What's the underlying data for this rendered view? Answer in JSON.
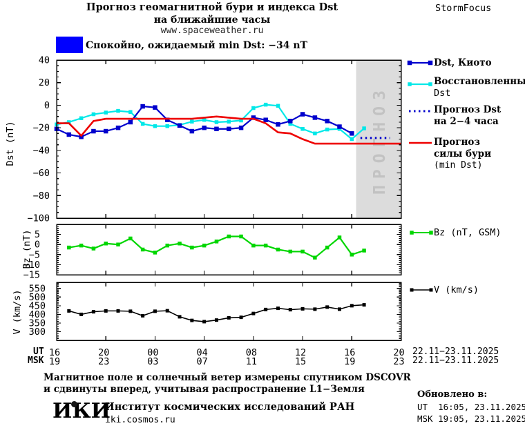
{
  "header": {
    "title_line1": "Прогноз геомагнитной бури и индекса Dst",
    "title_line2": "на ближайшие часы",
    "website": "www.spaceweather.ru",
    "brand": "StormFocus"
  },
  "status": {
    "label": "Спокойно, ожидаемый min Dst: −34 nT",
    "swatch_color": "#0000ff"
  },
  "forecast_band": {
    "label": "ПРОГНОЗ",
    "fill": "#dcdcdc",
    "label_color": "#c2c2c2",
    "from_hour": 40.35,
    "to_hour": 44
  },
  "legend": {
    "kyoto": "Dst, Киото",
    "restored_line1": "Восстановленный",
    "restored_line2": "Dst",
    "forecast_line1": "Прогноз Dst",
    "forecast_line2": "на 2−4 часа",
    "storm_line1": "Прогноз",
    "storm_line2": "силы бури",
    "storm_line3": "(min Dst)",
    "bz": "Bz (nT, GSM)",
    "v": "V (km/s)"
  },
  "axis": {
    "ut_label": "UT",
    "msk_label": "MSK",
    "ut_ticks": [
      "16",
      "20",
      "00",
      "04",
      "08",
      "12",
      "16",
      "20"
    ],
    "msk_ticks": [
      "19",
      "23",
      "03",
      "07",
      "11",
      "15",
      "19",
      "23"
    ],
    "tick_hours": [
      16,
      20,
      24,
      28,
      32,
      36,
      40,
      44
    ],
    "date_range_ut": "22.11−23.11.2025",
    "date_range_msk": "22.11−23.11.2025"
  },
  "footer": {
    "note_line1": "Магнитное поле и солнечный ветер измерены спутником DSCOVR",
    "note_line2": "и сдвинуты вперед, учитывая распространение L1−Земля",
    "logo": "ИКИ",
    "institute": "Институт космических исследований РАН",
    "site": "iki.cosmos.ru",
    "updated_title": "Обновлено в:",
    "updated_ut": "UT  16:05, 23.11.2025",
    "updated_msk": "MSK 19:05, 23.11.2025"
  },
  "chart_data": {
    "x_start_hour": 16,
    "x_end_hour": 44,
    "xticks_hours": [
      16,
      20,
      24,
      28,
      32,
      36,
      40,
      44
    ],
    "panels": [
      {
        "id": "dst",
        "type": "line",
        "ylabel": "Dst (nT)",
        "ylim": [
          -100,
          40
        ],
        "yticks": [
          40,
          20,
          0,
          -20,
          -40,
          -60,
          -80,
          -100
        ],
        "ytick_minor_step": 5,
        "series": [
          {
            "id": "restored",
            "name": "Восстановленный Dst",
            "color": "#00e8e8",
            "marker": true,
            "start_hour": 16,
            "step_hours": 1,
            "values": [
              -17,
              -15,
              -11.5,
              -8,
              -6.5,
              -5,
              -6,
              -16.5,
              -18.5,
              -18.5,
              -17.5,
              -14.5,
              -13,
              -15,
              -14.5,
              -13.5,
              -2.5,
              0.5,
              -0.5,
              -16.5,
              -21,
              -25,
              -21.5,
              -21,
              -30,
              -20.5
            ]
          },
          {
            "id": "kyoto",
            "name": "Dst, Киото",
            "color": "#0000cd",
            "marker": true,
            "start_hour": 16,
            "step_hours": 1,
            "values": [
              -21,
              -26,
              -28,
              -23,
              -23,
              -20,
              -15,
              -1,
              -2,
              -13,
              -18,
              -23,
              -20,
              -21,
              -21,
              -20,
              -11,
              -13,
              -17,
              -14,
              -8,
              -11,
              -14,
              -19,
              -25
            ]
          },
          {
            "id": "storm_forecast",
            "name": "Прогноз силы бури (min Dst)",
            "color": "#ee0000",
            "marker": false,
            "start_hour": 16,
            "step_hours": 1,
            "values": [
              -16,
              -16,
              -27,
              -14,
              -12,
              -12,
              -12,
              -12,
              -12,
              -12,
              -12,
              -12,
              -11,
              -10,
              -11,
              -12,
              -12,
              -16,
              -24,
              -25,
              -30,
              -34,
              -34,
              -34,
              -34,
              -34,
              -34,
              -34,
              -34
            ]
          },
          {
            "id": "forecast_dst",
            "name": "Прогноз Dst на 2−4 часа",
            "color": "#0000cd",
            "style": "dotted",
            "x_hours": [
              40.7,
              43.1
            ],
            "value": -29
          }
        ]
      },
      {
        "id": "bz",
        "type": "line",
        "ylabel": "Bz (nT)",
        "ylim": [
          -15,
          10
        ],
        "yticks": [
          5,
          0,
          -5,
          -10,
          -15
        ],
        "ytick_minor_step": 1,
        "series": [
          {
            "id": "bz",
            "name": "Bz (nT, GSM)",
            "color": "#00d600",
            "marker": true,
            "start_hour": 17,
            "step_hours": 1,
            "values": [
              -1.5,
              -0.5,
              -2,
              0.5,
              0,
              3,
              -2.5,
              -4,
              -0.5,
              0.5,
              -1.5,
              -0.5,
              1.5,
              4,
              4,
              -0.5,
              -0.5,
              -2.5,
              -3.5,
              -3.5,
              -6.5,
              -1.5,
              3.5,
              -5,
              -3
            ]
          }
        ]
      },
      {
        "id": "v",
        "type": "line",
        "ylabel": "V (km/s)",
        "ylim": [
          250,
          585
        ],
        "yticks": [
          550,
          500,
          450,
          400,
          350,
          300
        ],
        "ytick_minor_step": 10,
        "series": [
          {
            "id": "v",
            "name": "V (km/s)",
            "color": "#000000",
            "marker": true,
            "start_hour": 17,
            "step_hours": 1,
            "values": [
              420,
              400,
              415,
              420,
              420,
              418,
              392,
              418,
              421,
              386,
              365,
              358,
              367,
              380,
              383,
              405,
              428,
              435,
              427,
              432,
              430,
              442,
              430,
              450,
              455
            ]
          }
        ]
      }
    ]
  }
}
